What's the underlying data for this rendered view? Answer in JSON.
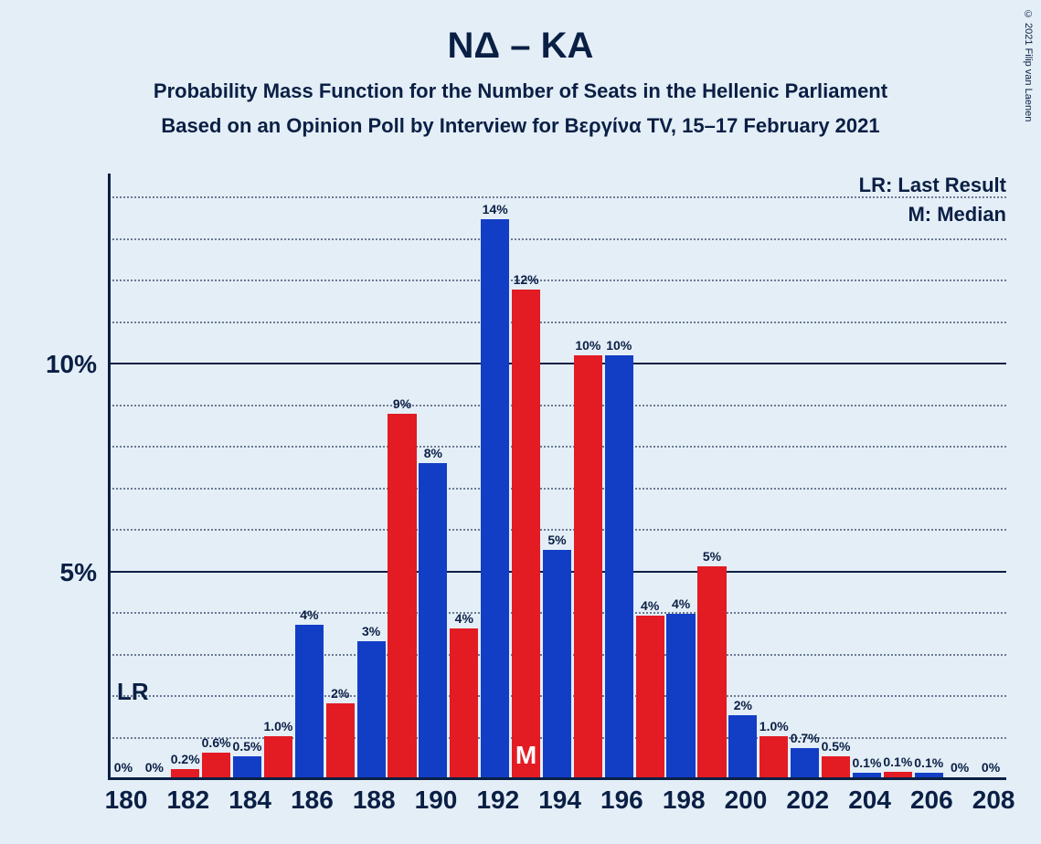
{
  "copyright": "© 2021 Filip van Laenen",
  "title": "ΝΔ – ΚΑ",
  "subtitle1": "Probability Mass Function for the Number of Seats in the Hellenic Parliament",
  "subtitle2": "Based on an Opinion Poll by Interview for Βεργίνα TV, 15–17 February 2021",
  "legend": {
    "lr": "LR: Last Result",
    "m": "M: Median"
  },
  "lr_label": "LR",
  "median_label": "M",
  "chart": {
    "type": "bar",
    "background_color": "#e4eef7",
    "axis_color": "#0a1f44",
    "grid_color": "#0a1f44",
    "bar_colors": {
      "a": "#e31b23",
      "b": "#123ec6"
    },
    "y_max_pct": 14.6,
    "y_major_ticks": [
      5,
      10
    ],
    "y_minor_step": 1,
    "x_labels": [
      "180",
      "182",
      "184",
      "186",
      "188",
      "190",
      "192",
      "194",
      "196",
      "198",
      "200",
      "202",
      "204",
      "206",
      "208"
    ],
    "median_index": 13,
    "lr_at_left": true,
    "bars": [
      {
        "label": "0%",
        "value": 0,
        "color": "a"
      },
      {
        "label": "0%",
        "value": 0,
        "color": "b"
      },
      {
        "label": "0.2%",
        "value": 0.2,
        "color": "a"
      },
      {
        "label": "0.6%",
        "value": 0.6,
        "color": "a"
      },
      {
        "label": "0.5%",
        "value": 0.5,
        "color": "b"
      },
      {
        "label": "1.0%",
        "value": 1.0,
        "color": "a"
      },
      {
        "label": "4%",
        "value": 3.7,
        "color": "b"
      },
      {
        "label": "2%",
        "value": 1.8,
        "color": "a"
      },
      {
        "label": "3%",
        "value": 3.3,
        "color": "b"
      },
      {
        "label": "9%",
        "value": 8.8,
        "color": "a"
      },
      {
        "label": "8%",
        "value": 7.6,
        "color": "b"
      },
      {
        "label": "4%",
        "value": 3.6,
        "color": "a"
      },
      {
        "label": "14%",
        "value": 13.5,
        "color": "b"
      },
      {
        "label": "12%",
        "value": 11.8,
        "color": "a",
        "median": true
      },
      {
        "label": "5%",
        "value": 5.5,
        "color": "b"
      },
      {
        "label": "10%",
        "value": 10.2,
        "color": "a"
      },
      {
        "label": "10%",
        "value": 10.2,
        "color": "b"
      },
      {
        "label": "4%",
        "value": 3.9,
        "color": "a"
      },
      {
        "label": "4%",
        "value": 3.95,
        "color": "b"
      },
      {
        "label": "5%",
        "value": 5.1,
        "color": "a"
      },
      {
        "label": "2%",
        "value": 1.5,
        "color": "b"
      },
      {
        "label": "1.0%",
        "value": 1.0,
        "color": "a"
      },
      {
        "label": "0.7%",
        "value": 0.7,
        "color": "b"
      },
      {
        "label": "0.5%",
        "value": 0.5,
        "color": "a"
      },
      {
        "label": "0.1%",
        "value": 0.1,
        "color": "b"
      },
      {
        "label": "0.1%",
        "value": 0.13,
        "color": "a"
      },
      {
        "label": "0.1%",
        "value": 0.1,
        "color": "b"
      },
      {
        "label": "0%",
        "value": 0,
        "color": "a"
      },
      {
        "label": "0%",
        "value": 0,
        "color": "b"
      }
    ]
  }
}
